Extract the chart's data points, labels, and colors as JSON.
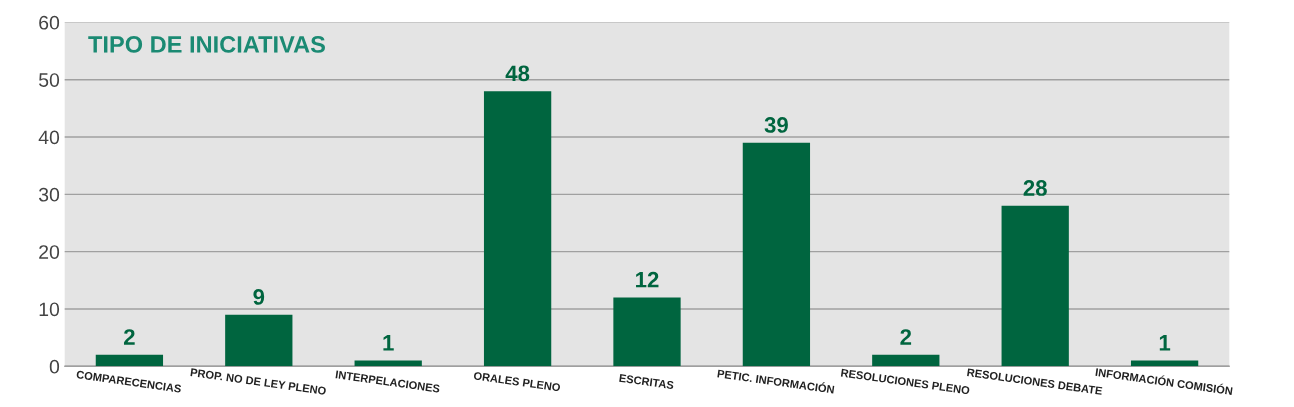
{
  "chart_data": {
    "type": "bar",
    "title": "TIPO DE INICIATIVAS",
    "categories": [
      "COMPARECENCIAS",
      "PROP. NO DE LEY PLENO",
      "INTERPELACIONES",
      "ORALES PLENO",
      "ESCRITAS",
      "PETIC. INFORMACIÓN",
      "RESOLUCIONES PLENO",
      "RESOLUCIONES DEBATE",
      "INFORMACIÓN COMISIÓN"
    ],
    "values": [
      2,
      9,
      1,
      48,
      12,
      39,
      2,
      28,
      1
    ],
    "color": "#00653f",
    "ylim": [
      0,
      60
    ],
    "yticks": [
      0,
      10,
      20,
      30,
      40,
      50,
      60
    ],
    "grid": "y",
    "data_labels": true
  }
}
